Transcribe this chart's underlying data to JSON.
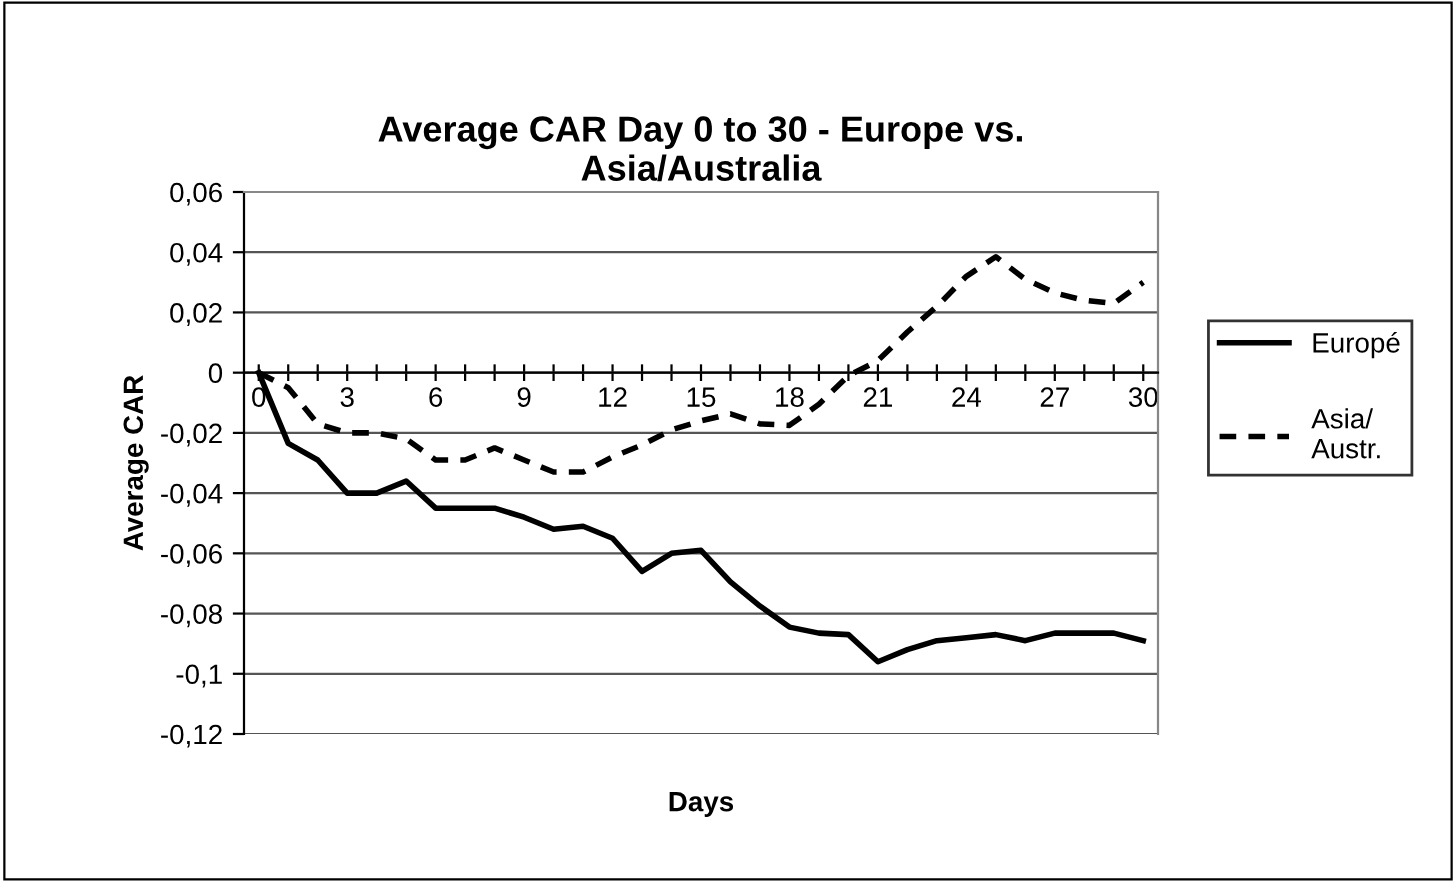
{
  "chart_data": {
    "type": "line",
    "title": "Average CAR Day 0 to 30 - Europe vs.\nAsia/Australia",
    "xlabel": "Days",
    "ylabel": "Average CAR",
    "categories": [
      "0",
      null,
      null,
      "3",
      null,
      null,
      "6",
      null,
      null,
      "9",
      null,
      null,
      "12",
      null,
      null,
      "15",
      null,
      null,
      "18",
      null,
      null,
      "21",
      null,
      null,
      "24",
      null,
      null,
      "27",
      null,
      null,
      "30"
    ],
    "series": [
      {
        "name": "Europé",
        "color": "#000000",
        "line_style": "solid",
        "values": [
          0,
          -0.0235,
          -0.029,
          -0.04,
          -0.04,
          -0.036,
          -0.045,
          -0.045,
          -0.045,
          -0.048,
          -0.052,
          -0.051,
          -0.055,
          -0.066,
          -0.06,
          -0.059,
          -0.0695,
          -0.0775,
          -0.0845,
          -0.0865,
          -0.087,
          -0.096,
          -0.092,
          -0.089,
          -0.088,
          -0.087,
          -0.089,
          -0.0865,
          -0.0865,
          -0.0865,
          -0.089
        ]
      },
      {
        "name": "Asia/\nAustr.",
        "color": "#000000",
        "line_style": "dashed",
        "values": [
          0,
          -0.005,
          -0.017,
          -0.02,
          -0.02,
          -0.022,
          -0.029,
          -0.029,
          -0.025,
          -0.029,
          -0.033,
          -0.033,
          -0.028,
          -0.024,
          -0.019,
          -0.016,
          -0.0137,
          -0.017,
          -0.0175,
          -0.0105,
          -0.001,
          0.004,
          0.0135,
          0.022,
          0.032,
          0.0385,
          0.031,
          0.0265,
          0.024,
          0.023,
          0.03
        ]
      }
    ],
    "ylim": [
      -0.12,
      0.06
    ],
    "yticks": [
      {
        "value": 0.06,
        "label": "0,06"
      },
      {
        "value": 0.04,
        "label": "0,04"
      },
      {
        "value": 0.02,
        "label": "0,02"
      },
      0,
      {
        "value": -0.02,
        "label": "-0,02"
      },
      {
        "value": -0.04,
        "label": "-0,04"
      },
      {
        "value": -0.06,
        "label": "-0,06"
      },
      {
        "value": -0.08,
        "label": "-0,08"
      },
      {
        "value": -0.1,
        "label": "-0,1"
      },
      {
        "value": -0.12,
        "label": "-0,12"
      }
    ],
    "grid": "y",
    "legend": "right",
    "marker": "none"
  }
}
